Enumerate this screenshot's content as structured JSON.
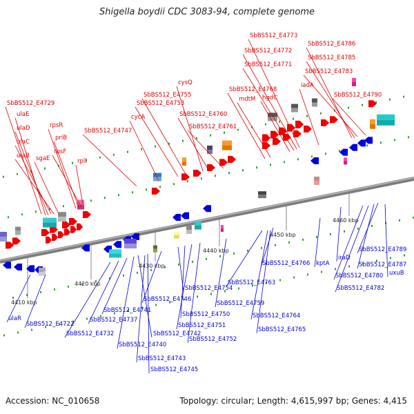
{
  "title": "Shigella boydii CDC 3083-94, complete genome",
  "footer": {
    "accession": "Accession: NC_010658",
    "summary": "Topology: circular; Length: 4,615,997 bp; Genes: 4,415"
  },
  "colors": {
    "forward_label": "#dd0000",
    "reverse_label": "#0000cc",
    "backbone": "#888888",
    "forward_gene": "#ee0000",
    "reverse_gene": "#0000dd",
    "tick": "#229922"
  },
  "scale_labels": [
    "4410 kbp",
    "4420 kbp",
    "4430 kbp",
    "4440 kbp",
    "4450 kbp",
    "4460 kbp"
  ],
  "forward_labels": [
    "SbBS512_E4729",
    "ulaE",
    "ulaD",
    "ulaC",
    "ulaB",
    "sgaE",
    "rpsR",
    "priB",
    "rpsF",
    "rplI",
    "SbBS512_E4747",
    "cycA",
    "SbBS512_E4753",
    "SbBS512_E4755",
    "cysQ",
    "SbBS512_E4760",
    "SbBS512_E4761",
    "SbBS512_E4768",
    "mdtM",
    "hgdC",
    "SbBS512_E4771",
    "SbBS512_E4772",
    "SbBS512_E4773",
    "iadA",
    "SbBS512_E4786",
    "SbBS512_E4785",
    "SbBS512_E4783",
    "SbBS512_E4790"
  ],
  "reverse_labels": [
    "ulaR",
    "SbBS512_E4722",
    "SbBS512_E4732",
    "SbBS512_E4737",
    "SbBS512_E4741",
    "SbBS512_E4740",
    "SbBS512_E4742",
    "SbBS512_E4743",
    "SbBS512_E4745",
    "SbBS512_E4746",
    "SbBS512_E4754",
    "SbBS512_E4750",
    "SbBS512_E4751",
    "SbBS512_E4752",
    "SbBS512_E4759",
    "SbBS512_E4763",
    "SbBS512_E4766",
    "SbBS512_E4764",
    "SbBS512_E4765",
    "kptA",
    "iraD",
    "SbBS512_E4780",
    "SbBS512_E4782",
    "SbBS512_E4787",
    "uxuB",
    "SbBS512_E4789"
  ]
}
